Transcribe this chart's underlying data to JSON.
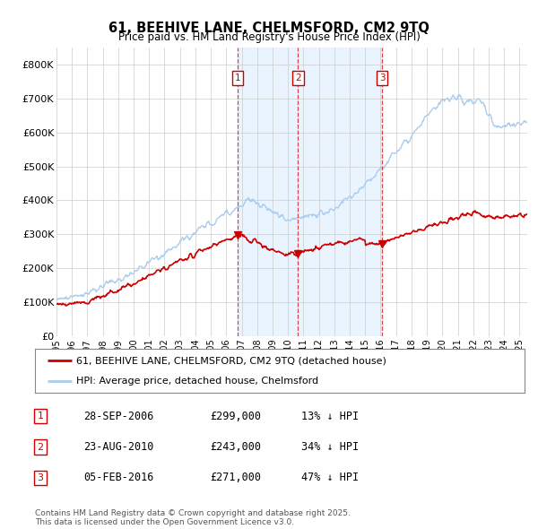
{
  "title1": "61, BEEHIVE LANE, CHELMSFORD, CM2 9TQ",
  "title2": "Price paid vs. HM Land Registry's House Price Index (HPI)",
  "yticks": [
    0,
    100000,
    200000,
    300000,
    400000,
    500000,
    600000,
    700000,
    800000
  ],
  "ytick_labels": [
    "£0",
    "£100K",
    "£200K",
    "£300K",
    "£400K",
    "£500K",
    "£600K",
    "£700K",
    "£800K"
  ],
  "ylim": [
    0,
    850000
  ],
  "xlim_start": 1995,
  "xlim_end": 2025.5,
  "sale_color": "#cc0000",
  "hpi_color": "#aaccee",
  "shade_color": "#ddeeff",
  "vline_color": "#dd4444",
  "box_color": "#cc0000",
  "sale_events": [
    {
      "date_num": 2006.75,
      "price": 299000,
      "label": "1"
    },
    {
      "date_num": 2010.65,
      "price": 243000,
      "label": "2"
    },
    {
      "date_num": 2016.09,
      "price": 271000,
      "label": "3"
    }
  ],
  "legend_entries": [
    {
      "label": "61, BEEHIVE LANE, CHELMSFORD, CM2 9TQ (detached house)",
      "color": "#cc0000"
    },
    {
      "label": "HPI: Average price, detached house, Chelmsford",
      "color": "#aaccee"
    }
  ],
  "table_rows": [
    {
      "num": "1",
      "date": "28-SEP-2006",
      "price": "£299,000",
      "pct": "13% ↓ HPI"
    },
    {
      "num": "2",
      "date": "23-AUG-2010",
      "price": "£243,000",
      "pct": "34% ↓ HPI"
    },
    {
      "num": "3",
      "date": "05-FEB-2016",
      "price": "£271,000",
      "pct": "47% ↓ HPI"
    }
  ],
  "footer": "Contains HM Land Registry data © Crown copyright and database right 2025.\nThis data is licensed under the Open Government Licence v3.0.",
  "background_color": "#ffffff",
  "grid_color": "#cccccc"
}
